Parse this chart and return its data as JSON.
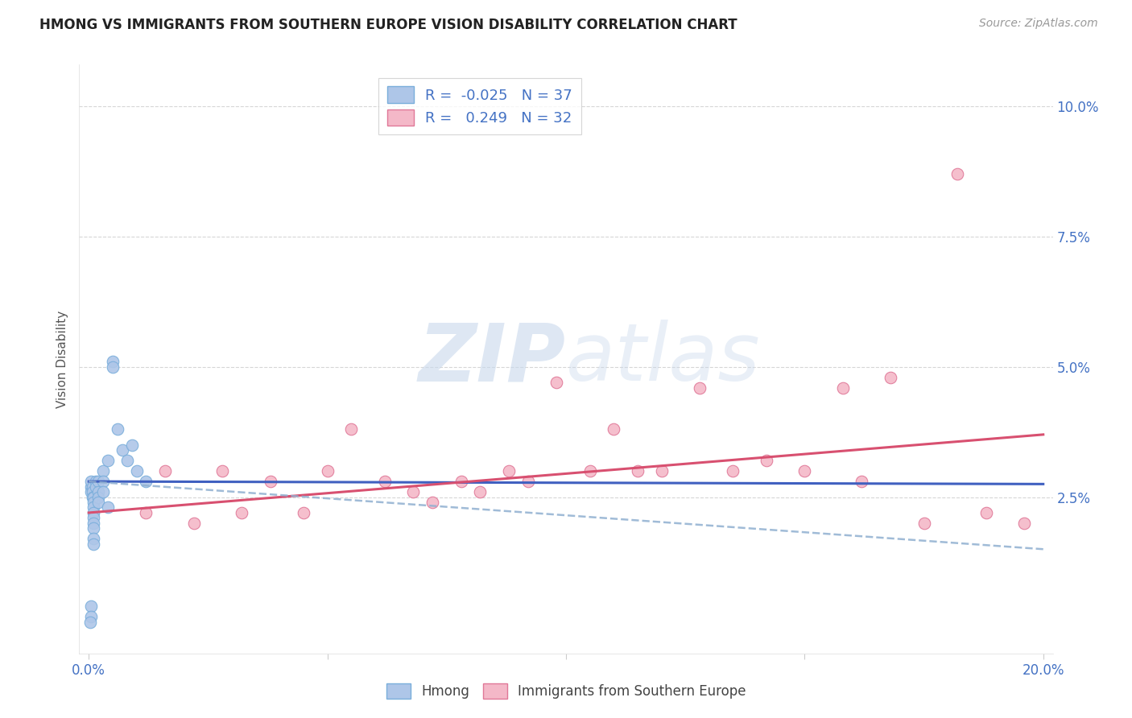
{
  "title": "HMONG VS IMMIGRANTS FROM SOUTHERN EUROPE VISION DISABILITY CORRELATION CHART",
  "source": "Source: ZipAtlas.com",
  "xlabel": "",
  "ylabel": "Vision Disability",
  "xlim": [
    -0.002,
    0.202
  ],
  "ylim": [
    -0.005,
    0.108
  ],
  "yticks": [
    0.025,
    0.05,
    0.075,
    0.1
  ],
  "ytick_labels": [
    "2.5%",
    "5.0%",
    "7.5%",
    "10.0%"
  ],
  "xticks": [
    0.0,
    0.05,
    0.1,
    0.15,
    0.2
  ],
  "xtick_labels": [
    "0.0%",
    "",
    "",
    "",
    "20.0%"
  ],
  "background_color": "#ffffff",
  "hmong_color": "#aec6e8",
  "hmong_edge_color": "#7aaedb",
  "southern_europe_color": "#f4b8c8",
  "southern_europe_edge_color": "#e07898",
  "hmong_R": -0.025,
  "hmong_N": 37,
  "southern_europe_R": 0.249,
  "southern_europe_N": 32,
  "hmong_line_color": "#4060c0",
  "southern_europe_line_color": "#d85070",
  "trendline_color": "#90b0d0",
  "watermark_zip": "ZIP",
  "watermark_atlas": "atlas",
  "hmong_x": [
    0.0005,
    0.0005,
    0.0005,
    0.0008,
    0.0008,
    0.0008,
    0.001,
    0.001,
    0.001,
    0.001,
    0.001,
    0.001,
    0.001,
    0.001,
    0.001,
    0.0015,
    0.0015,
    0.002,
    0.002,
    0.002,
    0.002,
    0.003,
    0.003,
    0.003,
    0.004,
    0.004,
    0.005,
    0.005,
    0.006,
    0.007,
    0.008,
    0.009,
    0.01,
    0.012,
    0.0005,
    0.0005,
    0.0003
  ],
  "hmong_y": [
    0.027,
    0.028,
    0.026,
    0.027,
    0.026,
    0.025,
    0.025,
    0.024,
    0.023,
    0.022,
    0.021,
    0.02,
    0.019,
    0.017,
    0.016,
    0.028,
    0.027,
    0.028,
    0.026,
    0.025,
    0.024,
    0.03,
    0.028,
    0.026,
    0.032,
    0.023,
    0.051,
    0.05,
    0.038,
    0.034,
    0.032,
    0.035,
    0.03,
    0.028,
    0.004,
    0.002,
    0.001
  ],
  "se_x": [
    0.012,
    0.016,
    0.022,
    0.028,
    0.032,
    0.038,
    0.045,
    0.05,
    0.055,
    0.062,
    0.068,
    0.072,
    0.078,
    0.082,
    0.088,
    0.092,
    0.098,
    0.105,
    0.11,
    0.115,
    0.12,
    0.128,
    0.135,
    0.142,
    0.15,
    0.158,
    0.162,
    0.168,
    0.175,
    0.182,
    0.188,
    0.196
  ],
  "se_y": [
    0.022,
    0.03,
    0.02,
    0.03,
    0.022,
    0.028,
    0.022,
    0.03,
    0.038,
    0.028,
    0.026,
    0.024,
    0.028,
    0.026,
    0.03,
    0.028,
    0.047,
    0.03,
    0.038,
    0.03,
    0.03,
    0.046,
    0.03,
    0.032,
    0.03,
    0.046,
    0.028,
    0.048,
    0.02,
    0.087,
    0.022,
    0.02
  ],
  "hmong_line_x": [
    0.0,
    0.2
  ],
  "hmong_line_y": [
    0.028,
    0.0275
  ],
  "se_line_x": [
    0.0,
    0.2
  ],
  "se_line_y": [
    0.022,
    0.037
  ],
  "dash_line_x": [
    0.0,
    0.2
  ],
  "dash_line_y": [
    0.028,
    0.015
  ]
}
